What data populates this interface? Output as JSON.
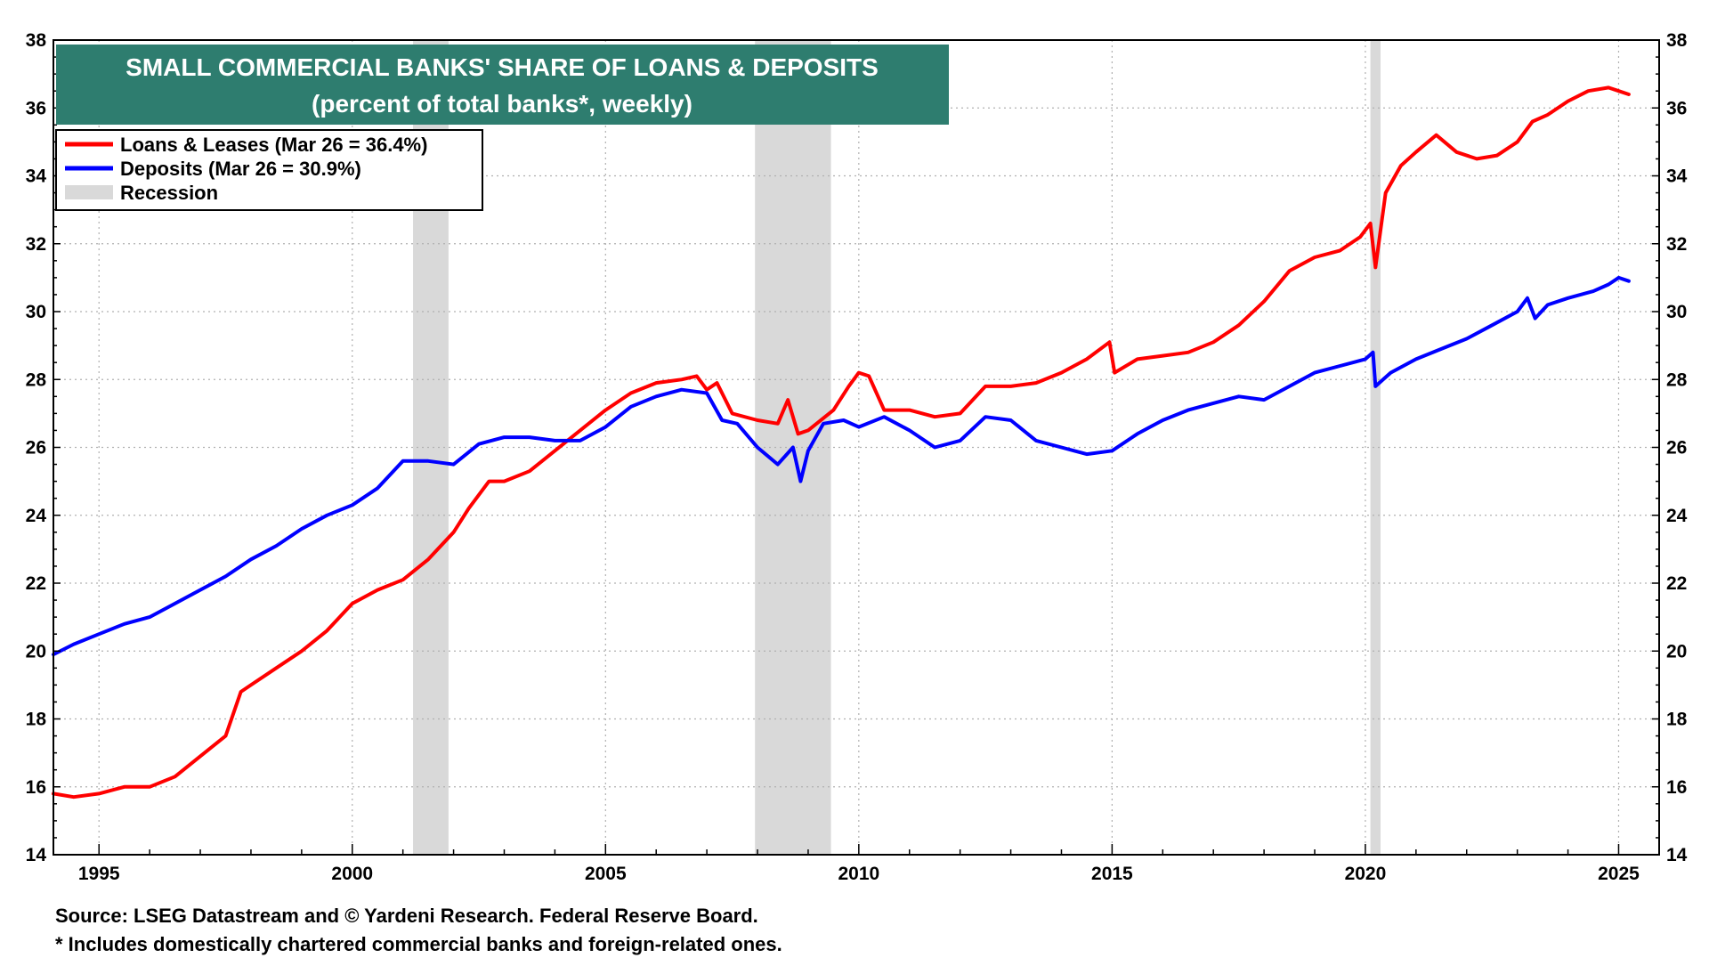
{
  "chart_data": {
    "type": "line",
    "title": "SMALL COMMERCIAL BANKS' SHARE OF LOANS & DEPOSITS",
    "subtitle": "(percent of total banks*, weekly)",
    "colors": {
      "title_bg": "#2e7d6f",
      "loans": "#ff0000",
      "deposits": "#0000ff",
      "recession": "#d9d9d9",
      "grid": "#b0b0b0"
    },
    "xlim": [
      1994.1,
      2025.8
    ],
    "ylim": [
      14,
      38
    ],
    "y_ticks": [
      14,
      16,
      18,
      20,
      22,
      24,
      26,
      28,
      30,
      32,
      34,
      36,
      38
    ],
    "x_ticks": [
      1995,
      2000,
      2005,
      2010,
      2015,
      2020,
      2025
    ],
    "grid": true,
    "legend": {
      "position": "top-left",
      "entries": [
        "Loans & Leases (Mar 26 = 36.4%)",
        "Deposits (Mar 26 = 30.9%)",
        "Recession"
      ]
    },
    "recessions": [
      [
        2001.2,
        2001.9
      ],
      [
        2007.95,
        2009.45
      ],
      [
        2020.1,
        2020.3
      ]
    ],
    "series": [
      {
        "name": "Loans & Leases (Mar 26 = 36.4%)",
        "color": "#ff0000",
        "x": [
          1994.1,
          1994.5,
          1995.0,
          1995.5,
          1996.0,
          1996.5,
          1997.0,
          1997.5,
          1997.8,
          1998.0,
          1998.5,
          1999.0,
          1999.5,
          2000.0,
          2000.5,
          2001.0,
          2001.5,
          2002.0,
          2002.3,
          2002.7,
          2003.0,
          2003.5,
          2004.0,
          2004.5,
          2005.0,
          2005.5,
          2006.0,
          2006.5,
          2006.8,
          2007.0,
          2007.2,
          2007.5,
          2008.0,
          2008.4,
          2008.6,
          2008.8,
          2009.0,
          2009.5,
          2009.8,
          2010.0,
          2010.2,
          2010.5,
          2011.0,
          2011.5,
          2012.0,
          2012.5,
          2013.0,
          2013.5,
          2014.0,
          2014.5,
          2014.95,
          2015.05,
          2015.5,
          2016.0,
          2016.5,
          2017.0,
          2017.5,
          2018.0,
          2018.5,
          2019.0,
          2019.5,
          2019.9,
          2020.1,
          2020.2,
          2020.4,
          2020.7,
          2021.0,
          2021.4,
          2021.8,
          2022.2,
          2022.6,
          2023.0,
          2023.3,
          2023.6,
          2024.0,
          2024.4,
          2024.8,
          2025.0,
          2025.2
        ],
        "values": [
          15.8,
          15.7,
          15.8,
          16.0,
          16.0,
          16.3,
          16.9,
          17.5,
          18.8,
          19.0,
          19.5,
          20.0,
          20.6,
          21.4,
          21.8,
          22.1,
          22.7,
          23.5,
          24.2,
          25.0,
          25.0,
          25.3,
          25.9,
          26.5,
          27.1,
          27.6,
          27.9,
          28.0,
          28.1,
          27.7,
          27.9,
          27.0,
          26.8,
          26.7,
          27.4,
          26.4,
          26.5,
          27.1,
          27.8,
          28.2,
          28.1,
          27.1,
          27.1,
          26.9,
          27.0,
          27.8,
          27.8,
          27.9,
          28.2,
          28.6,
          29.1,
          28.2,
          28.6,
          28.7,
          28.8,
          29.1,
          29.6,
          30.3,
          31.2,
          31.6,
          31.8,
          32.2,
          32.6,
          31.3,
          33.5,
          34.3,
          34.7,
          35.2,
          34.7,
          34.5,
          34.6,
          35.0,
          35.6,
          35.8,
          36.2,
          36.5,
          36.6,
          36.5,
          36.4
        ]
      },
      {
        "name": "Deposits (Mar 26 = 30.9%)",
        "color": "#0000ff",
        "x": [
          1994.1,
          1994.5,
          1995.0,
          1995.5,
          1996.0,
          1996.5,
          1997.0,
          1997.5,
          1998.0,
          1998.5,
          1999.0,
          1999.5,
          2000.0,
          2000.5,
          2001.0,
          2001.5,
          2002.0,
          2002.5,
          2003.0,
          2003.5,
          2004.0,
          2004.5,
          2005.0,
          2005.5,
          2006.0,
          2006.5,
          2007.0,
          2007.3,
          2007.6,
          2008.0,
          2008.4,
          2008.7,
          2008.85,
          2009.0,
          2009.3,
          2009.7,
          2010.0,
          2010.5,
          2011.0,
          2011.5,
          2012.0,
          2012.5,
          2013.0,
          2013.5,
          2014.0,
          2014.5,
          2015.0,
          2015.5,
          2016.0,
          2016.5,
          2017.0,
          2017.5,
          2018.0,
          2018.5,
          2019.0,
          2019.5,
          2020.0,
          2020.15,
          2020.2,
          2020.5,
          2021.0,
          2021.5,
          2022.0,
          2022.5,
          2023.0,
          2023.2,
          2023.35,
          2023.6,
          2024.0,
          2024.5,
          2024.8,
          2025.0,
          2025.2
        ],
        "values": [
          19.9,
          20.2,
          20.5,
          20.8,
          21.0,
          21.4,
          21.8,
          22.2,
          22.7,
          23.1,
          23.6,
          24.0,
          24.3,
          24.8,
          25.6,
          25.6,
          25.5,
          26.1,
          26.3,
          26.3,
          26.2,
          26.2,
          26.6,
          27.2,
          27.5,
          27.7,
          27.6,
          26.8,
          26.7,
          26.0,
          25.5,
          26.0,
          25.0,
          25.9,
          26.7,
          26.8,
          26.6,
          26.9,
          26.5,
          26.0,
          26.2,
          26.9,
          26.8,
          26.2,
          26.0,
          25.8,
          25.9,
          26.4,
          26.8,
          27.1,
          27.3,
          27.5,
          27.4,
          27.8,
          28.2,
          28.4,
          28.6,
          28.8,
          27.8,
          28.2,
          28.6,
          28.9,
          29.2,
          29.6,
          30.0,
          30.4,
          29.8,
          30.2,
          30.4,
          30.6,
          30.8,
          31.0,
          30.9
        ]
      }
    ],
    "source": "Source: LSEG Datastream and © Yardeni Research. Federal Reserve Board.",
    "footnote": "* Includes domestically chartered commercial banks and foreign-related ones."
  }
}
